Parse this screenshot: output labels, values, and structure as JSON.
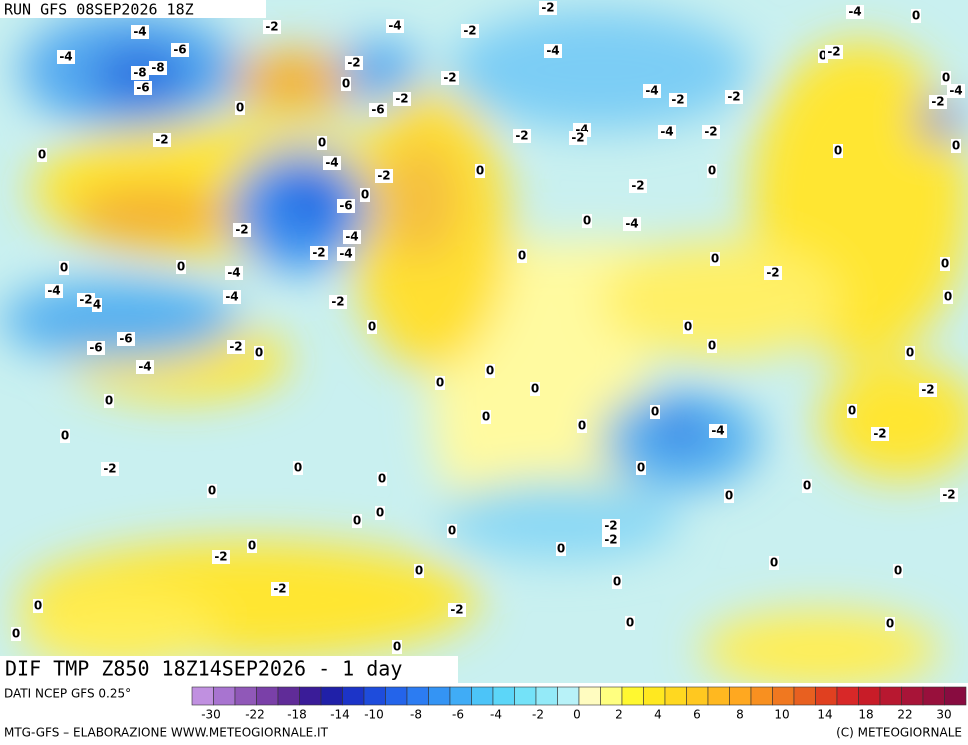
{
  "header": {
    "run": "RUN GFS 08SEP2026 18Z"
  },
  "map": {
    "title": "DIF TMP Z850 18Z14SEP2026 - 1 day",
    "contour_labels": [
      "-4",
      "-4",
      "-6",
      "-8",
      "-8",
      "-6",
      "-2",
      "0",
      "-2",
      "-4",
      "-2",
      "0",
      "-6",
      "-2",
      "-2",
      "-2",
      "-4",
      "-2",
      "-2",
      "-4",
      "-2",
      "-4",
      "-2",
      "-2",
      "-4",
      "-2",
      "-4",
      "0",
      "0",
      "-2",
      "0",
      "-2",
      "-4",
      "0",
      "0",
      "0",
      "0",
      "-4",
      "-2",
      "0",
      "-6",
      "0",
      "-2",
      "0",
      "0",
      "-4",
      "-2",
      "-4",
      "-2",
      "-4",
      "0",
      "0",
      "-2",
      "0",
      "0",
      "0",
      "-4",
      "-4",
      "-2",
      "4",
      "-4",
      "-2",
      "0",
      "0",
      "0",
      "-6",
      "-6",
      "-2",
      "0",
      "0",
      "0",
      "-4",
      "0",
      "0",
      "0",
      "-2",
      "0",
      "0",
      "0",
      "0",
      "0",
      "-4",
      "-2",
      "0",
      "0",
      "0",
      "0",
      "-2",
      "0",
      "0",
      "0",
      "-2",
      "0",
      "0",
      "0",
      "-2",
      "-2",
      "0",
      "-2",
      "0",
      "0",
      "0",
      "0",
      "-2",
      "0",
      "0",
      "-2",
      "0",
      "0",
      "0",
      "0"
    ]
  },
  "legend": {
    "source": "DATI NCEP GFS 0.25°",
    "labels": [
      "-30",
      "-22",
      "-18",
      "-14",
      "-10",
      "-8",
      "-6",
      "-4",
      "-2",
      "0",
      "2",
      "4",
      "6",
      "8",
      "10",
      "14",
      "18",
      "22",
      "30"
    ]
  },
  "footer": {
    "left": "MTG-GFS – ELABORAZIONE WWW.METEOGIORNALE.IT",
    "right": "(C) METEOGIORNALE"
  }
}
